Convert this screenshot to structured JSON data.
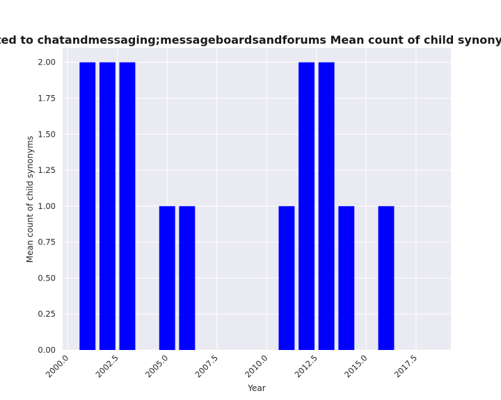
{
  "chart_data": {
    "type": "bar",
    "title": "e related to chatandmessaging;messageboardsandforums Mean count of child synonyms in pr",
    "xlabel": "Year",
    "ylabel": "Mean count of child synonyms",
    "x": [
      2001,
      2002,
      2003,
      2005,
      2006,
      2011,
      2012,
      2013,
      2014,
      2016
    ],
    "values": [
      2,
      2,
      2,
      1,
      1,
      1,
      2,
      2,
      1,
      1
    ],
    "xlim": [
      1999.75,
      2019.25
    ],
    "ylim": [
      0,
      2.1
    ],
    "xticks": [
      2000.0,
      2002.5,
      2005.0,
      2007.5,
      2010.0,
      2012.5,
      2015.0,
      2017.5
    ],
    "xtick_labels": [
      "2000.0",
      "2002.5",
      "2005.0",
      "2007.5",
      "2010.0",
      "2012.5",
      "2015.0",
      "2017.5"
    ],
    "yticks": [
      0,
      0.25,
      0.5,
      0.75,
      1.0,
      1.25,
      1.5,
      1.75,
      2.0
    ],
    "ytick_labels": [
      "0.00",
      "0.25",
      "0.50",
      "0.75",
      "1.00",
      "1.25",
      "1.50",
      "1.75",
      "2.00"
    ],
    "grid": true,
    "bar_color": "#0000ff",
    "background_color": "#eaeaf2",
    "grid_color": "#ffffff"
  }
}
